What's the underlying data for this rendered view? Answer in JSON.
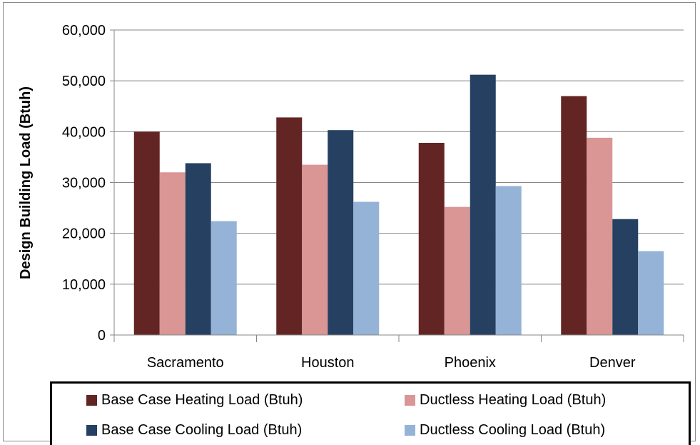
{
  "chart_data": {
    "type": "bar",
    "categories": [
      "Sacramento",
      "Houston",
      "Phoenix",
      "Denver"
    ],
    "series": [
      {
        "name": "Base Case Heating Load (Btuh)",
        "color": "#632523",
        "values": [
          40000,
          42800,
          37800,
          47000
        ]
      },
      {
        "name": "Ductless Heating Load (Btuh)",
        "color": "#d99694",
        "values": [
          32000,
          33500,
          25200,
          38800
        ]
      },
      {
        "name": "Base Case Cooling Load (Btuh)",
        "color": "#254061",
        "values": [
          33800,
          40300,
          51200,
          22800
        ]
      },
      {
        "name": "Ductless Cooling Load (Btuh)",
        "color": "#95b3d7",
        "values": [
          22400,
          26200,
          29300,
          16500
        ]
      }
    ],
    "title": "",
    "xlabel": "",
    "ylabel": "Design Building Load (Btuh)",
    "ylim": [
      0,
      60000
    ],
    "yticks": [
      0,
      10000,
      20000,
      30000,
      40000,
      50000,
      60000
    ],
    "ytick_labels": [
      "0",
      "10,000",
      "20,000",
      "30,000",
      "40,000",
      "50,000",
      "60,000"
    ],
    "grid": true,
    "legend_position": "bottom"
  }
}
